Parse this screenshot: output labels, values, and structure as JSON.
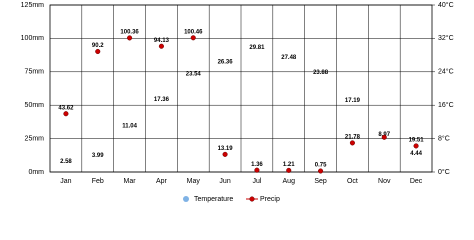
{
  "chart_data": {
    "type": "climate",
    "categories": [
      "Jan",
      "Feb",
      "Mar",
      "Apr",
      "May",
      "Jun",
      "Jul",
      "Aug",
      "Sep",
      "Oct",
      "Nov",
      "Dec"
    ],
    "series": [
      {
        "name": "Temperature",
        "color": "#7fb2e5",
        "axis": "y2",
        "values": [
          2.58,
          3.99,
          11.04,
          17.36,
          23.54,
          26.36,
          29.81,
          27.48,
          23.88,
          17.19,
          8.97,
          4.44
        ]
      },
      {
        "name": "Precip",
        "color": "#cc0000",
        "values": [
          43.62,
          90.2,
          100.36,
          94.13,
          100.46,
          13.19,
          1.36,
          1.21,
          0.75,
          21.78,
          26,
          19.51
        ],
        "value_labels": [
          "43.62",
          "90.2",
          "100.36",
          "94.13",
          "100.46",
          "13.19",
          "1.36",
          "1.21",
          "0.75",
          "21.78",
          null,
          "19.51"
        ]
      }
    ],
    "ylim": [
      0,
      125
    ],
    "yticks": [
      {
        "value": 0,
        "label": "0mm"
      },
      {
        "value": 25,
        "label": "25mm"
      },
      {
        "value": 50,
        "label": "50mm"
      },
      {
        "value": 75,
        "label": "75mm"
      },
      {
        "value": 100,
        "label": "100mm"
      },
      {
        "value": 125,
        "label": "125mm"
      }
    ],
    "y2lim": [
      0,
      40
    ],
    "y2ticks": [
      {
        "value": 0,
        "label": "0°C"
      },
      {
        "value": 8,
        "label": "8°C"
      },
      {
        "value": 16,
        "label": "16°C"
      },
      {
        "value": 24,
        "label": "24°C"
      },
      {
        "value": 32,
        "label": "32°C"
      },
      {
        "value": 40,
        "label": "40°C"
      }
    ],
    "grid": true
  }
}
